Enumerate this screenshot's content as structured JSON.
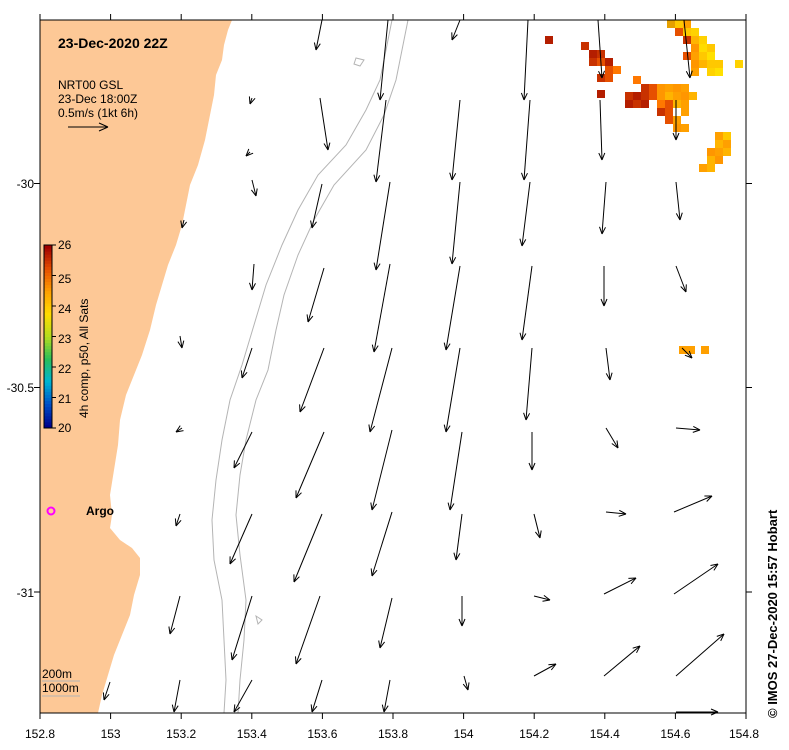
{
  "map": {
    "title": "23-Dec-2020 22Z",
    "product_lines": [
      "NRT00 GSL",
      "23-Dec 18:00Z",
      "0.5m/s (1kt 6h)"
    ],
    "lon_range": [
      152.8,
      154.8
    ],
    "lat_range": [
      -31.33,
      -29.58
    ],
    "x_ticks": [
      "152.8",
      "153",
      "153.2",
      "153.4",
      "153.6",
      "153.8",
      "154",
      "154.2",
      "154.4",
      "154.6",
      "154.8"
    ],
    "y_ticks": [
      "-30",
      "-30.5",
      "-31"
    ],
    "colorbar": {
      "label": "4h comp, p50, All Sats",
      "ticks": [
        "20",
        "21",
        "22",
        "23",
        "24",
        "25",
        "26"
      ],
      "range": [
        20,
        26
      ],
      "colors": [
        "#00008b",
        "#0050c8",
        "#00b4d2",
        "#28be5a",
        "#b4dc1e",
        "#ffdc00",
        "#ffa000",
        "#e65000",
        "#a00000"
      ]
    },
    "argo_label": "Argo",
    "isobath_labels": [
      "200m",
      "1000m"
    ],
    "credit": "© IMOS 27-Dec-2020 15:57 Hobart",
    "land_color": "#fdc896",
    "argo_color": "#ff00ff"
  }
}
